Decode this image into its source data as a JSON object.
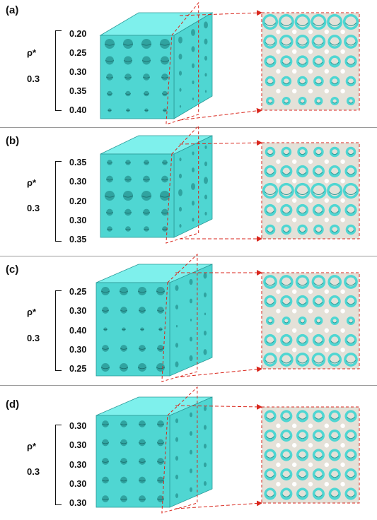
{
  "panels": [
    {
      "label": "(a)",
      "rho_symbol": "ρ*",
      "rho_value": "0.3",
      "levels": [
        "0.20",
        "0.25",
        "0.30",
        "0.35",
        "0.40"
      ]
    },
    {
      "label": "(b)",
      "rho_symbol": "ρ*",
      "rho_value": "0.3",
      "levels": [
        "0.35",
        "0.30",
        "0.20",
        "0.30",
        "0.35"
      ]
    },
    {
      "label": "(c)",
      "rho_symbol": "ρ*",
      "rho_value": "0.3",
      "levels": [
        "0.25",
        "0.30",
        "0.40",
        "0.30",
        "0.25"
      ]
    },
    {
      "label": "(d)",
      "rho_symbol": "ρ*",
      "rho_value": "0.3",
      "levels": [
        "0.30",
        "0.30",
        "0.30",
        "0.30",
        "0.30"
      ]
    }
  ],
  "colors": {
    "lattice_face": "#4fd6d2",
    "lattice_top": "#7ef0ec",
    "lattice_shadow": "#2a9a98",
    "section_bg": "#e4e1d8",
    "arrow": "#d9261c",
    "divider": "#9a9a9a"
  }
}
